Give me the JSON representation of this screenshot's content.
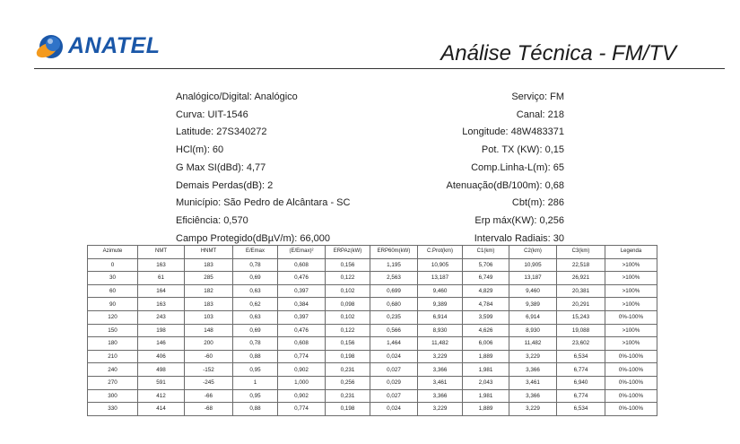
{
  "header": {
    "logo_text": "ANATEL",
    "title": "Análise Técnica - FM/TV"
  },
  "info": {
    "left": [
      "Analógico/Digital: Analógico",
      "Curva: UIT-1546",
      "Latitude: 27S340272",
      "HCl(m): 60",
      "G Max SI(dBd): 4,77",
      "Demais Perdas(dB): 2",
      "Município: São Pedro de Alcântara - SC",
      "Eficiência: 0,570",
      "Campo Protegido(dBµV/m): 66,000"
    ],
    "right": [
      "Serviço: FM",
      "Canal: 218",
      "Longitude: 48W483371",
      "Pot. TX (KW): 0,15",
      "Comp.Linha-L(m): 65",
      "Atenuação(dB/100m): 0,68",
      "Cbt(m): 286",
      "Erp máx(KW): 0,256",
      "Intervalo Radiais: 30"
    ]
  },
  "table": {
    "headers": [
      "Azimute",
      "NMT",
      "HNMT",
      "E/Emax",
      "(E/Emax)²",
      "ERPAz(kW)",
      "ERP60m(kW)",
      "C.Prot(km)",
      "C1(km)",
      "C2(km)",
      "C3(km)",
      "Legenda"
    ],
    "rows": [
      [
        "0",
        "163",
        "183",
        "0,78",
        "0,608",
        "0,156",
        "1,195",
        "10,905",
        "5,706",
        "10,905",
        "22,518",
        ">100%"
      ],
      [
        "30",
        "61",
        "285",
        "0,69",
        "0,476",
        "0,122",
        "2,563",
        "13,187",
        "6,749",
        "13,187",
        "26,921",
        ">100%"
      ],
      [
        "60",
        "164",
        "182",
        "0,63",
        "0,397",
        "0,102",
        "0,699",
        "9,460",
        "4,829",
        "9,460",
        "20,381",
        ">100%"
      ],
      [
        "90",
        "163",
        "183",
        "0,62",
        "0,384",
        "0,098",
        "0,680",
        "9,389",
        "4,784",
        "9,389",
        "20,291",
        ">100%"
      ],
      [
        "120",
        "243",
        "103",
        "0,63",
        "0,397",
        "0,102",
        "0,235",
        "6,914",
        "3,599",
        "6,914",
        "15,243",
        "0%-100%"
      ],
      [
        "150",
        "198",
        "148",
        "0,69",
        "0,476",
        "0,122",
        "0,566",
        "8,930",
        "4,626",
        "8,930",
        "19,088",
        ">100%"
      ],
      [
        "180",
        "146",
        "200",
        "0,78",
        "0,608",
        "0,156",
        "1,464",
        "11,482",
        "6,006",
        "11,482",
        "23,602",
        ">100%"
      ],
      [
        "210",
        "406",
        "-60",
        "0,88",
        "0,774",
        "0,198",
        "0,024",
        "3,229",
        "1,889",
        "3,229",
        "6,534",
        "0%-100%"
      ],
      [
        "240",
        "498",
        "-152",
        "0,95",
        "0,902",
        "0,231",
        "0,027",
        "3,366",
        "1,981",
        "3,366",
        "6,774",
        "0%-100%"
      ],
      [
        "270",
        "591",
        "-245",
        "1",
        "1,000",
        "0,256",
        "0,029",
        "3,461",
        "2,043",
        "3,461",
        "6,940",
        "0%-100%"
      ],
      [
        "300",
        "412",
        "-66",
        "0,95",
        "0,902",
        "0,231",
        "0,027",
        "3,366",
        "1,981",
        "3,366",
        "6,774",
        "0%-100%"
      ],
      [
        "330",
        "414",
        "-68",
        "0,88",
        "0,774",
        "0,198",
        "0,024",
        "3,229",
        "1,889",
        "3,229",
        "6,534",
        "0%-100%"
      ]
    ]
  },
  "colors": {
    "logo_blue": "#1a57a8",
    "logo_orange": "#f39a1e"
  }
}
